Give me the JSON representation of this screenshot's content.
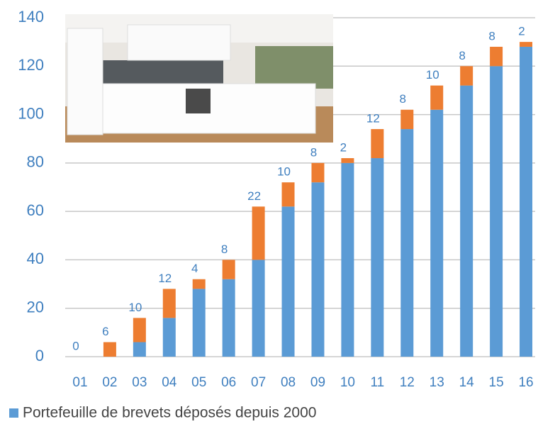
{
  "chart_data": {
    "type": "stacked-bar",
    "categories": [
      "01",
      "02",
      "03",
      "04",
      "05",
      "06",
      "07",
      "08",
      "09",
      "10",
      "11",
      "12",
      "13",
      "14",
      "15",
      "16"
    ],
    "series": [
      {
        "name": "Portefeuille de brevets déposés depuis 2000",
        "color": "#5b9bd5",
        "values": [
          0,
          0,
          6,
          16,
          28,
          32,
          40,
          62,
          72,
          80,
          82,
          94,
          102,
          112,
          120,
          128
        ]
      },
      {
        "color": "#ed7d31",
        "values": [
          0,
          6,
          10,
          12,
          4,
          8,
          22,
          10,
          8,
          2,
          12,
          8,
          10,
          8,
          8,
          2
        ]
      }
    ],
    "ylim": [
      0,
      140
    ],
    "yticks": [
      0,
      20,
      40,
      60,
      80,
      100,
      120,
      140
    ],
    "grid": true,
    "legend": "bottom"
  }
}
